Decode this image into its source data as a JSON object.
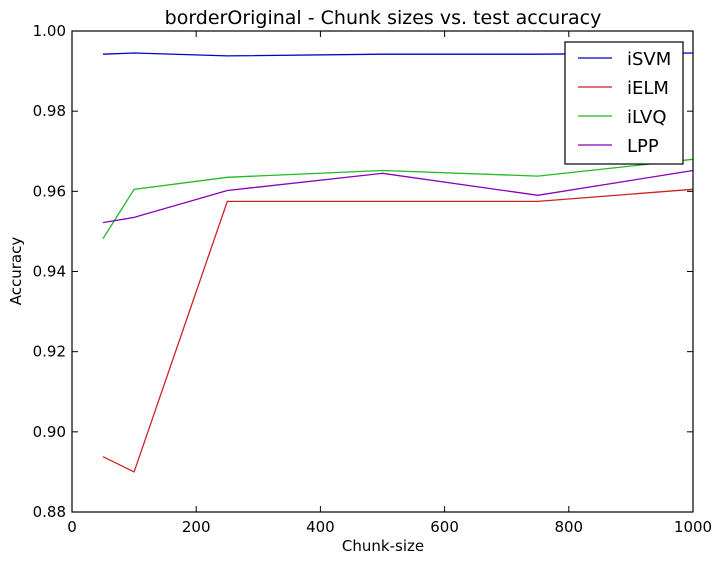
{
  "chart_data": {
    "type": "line",
    "title": "borderOriginal - Chunk sizes vs. test accuracy",
    "xlabel": "Chunk-size",
    "ylabel": "Accuracy",
    "xlim": [
      0,
      1000
    ],
    "ylim": [
      0.88,
      1.0
    ],
    "xticks": [
      0,
      200,
      400,
      600,
      800,
      1000
    ],
    "xtick_labels": [
      "0",
      "200",
      "400",
      "600",
      "800",
      "1000"
    ],
    "yticks": [
      0.88,
      0.9,
      0.92,
      0.94,
      0.96,
      0.98,
      1.0
    ],
    "ytick_labels": [
      "0.88",
      "0.90",
      "0.92",
      "0.94",
      "0.96",
      "0.98",
      "1.00"
    ],
    "grid": false,
    "legend_position": "top-right",
    "x": [
      50,
      100,
      250,
      500,
      750,
      1000
    ],
    "series": [
      {
        "name": "iSVM",
        "color": "#0000cc",
        "values": [
          0.9942,
          0.9945,
          0.9938,
          0.9942,
          0.9942,
          0.9945
        ]
      },
      {
        "name": "iELM",
        "color": "#cc2222",
        "values": [
          0.8938,
          0.89,
          0.9575,
          0.9575,
          0.9575,
          0.9605
        ]
      },
      {
        "name": "iLVQ",
        "color": "#22bb22",
        "values": [
          0.9482,
          0.9605,
          0.9635,
          0.9652,
          0.9638,
          0.968
        ]
      },
      {
        "name": "LPP",
        "color": "#8800bb",
        "values": [
          0.9522,
          0.9535,
          0.9602,
          0.9645,
          0.959,
          0.9652
        ]
      }
    ]
  }
}
